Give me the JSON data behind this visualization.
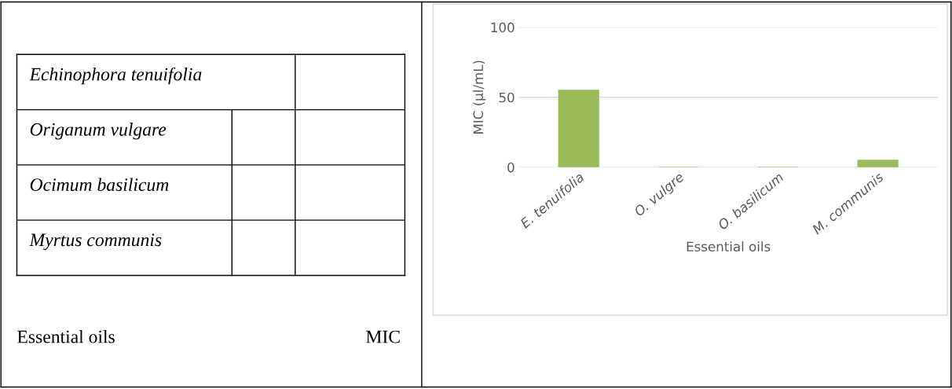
{
  "chart_data": [
    {
      "type": "other",
      "annotations": [
        "Echinophora tenuifolia",
        "Origanum vulgare",
        "Ocimum basilicum",
        "Myrtus communis",
        "Essential oils",
        "MIC"
      ]
    },
    {
      "type": "bar",
      "xlabel": "Essential oils",
      "ylabel": "MIC (µl/mL)",
      "categories": [
        "E. tenuifolia",
        "O. vulgre",
        "O. basilicum",
        "M. communis"
      ],
      "values": [
        55,
        0,
        0,
        5
      ],
      "color": "#9bbb59",
      "ylim": [
        0,
        100
      ],
      "yticks": [
        0,
        50,
        100
      ],
      "grid": "y"
    }
  ]
}
